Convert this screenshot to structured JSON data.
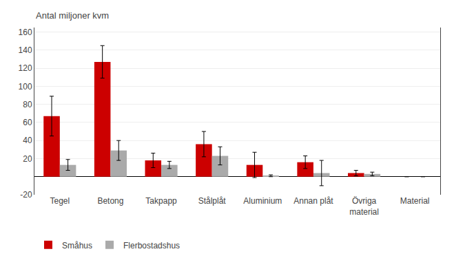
{
  "chart_data": {
    "type": "bar",
    "ylabel": "Antal miljoner kvm",
    "categories": [
      "Tegel",
      "Betong",
      "Takpapp",
      "Stålplåt",
      "Aluminium",
      "Annan plåt",
      "Övriga\nmaterial",
      "Material"
    ],
    "series": [
      {
        "name": "Småhus",
        "color": "#cc0000",
        "values": [
          67,
          127,
          18,
          36,
          13,
          16,
          4,
          0
        ],
        "errors": [
          22,
          18,
          8,
          14,
          14,
          7,
          3,
          0
        ]
      },
      {
        "name": "Flerbostadshus",
        "color": "#aaaaaa",
        "values": [
          13,
          29,
          13,
          23,
          1,
          4,
          3,
          0
        ],
        "errors": [
          6,
          11,
          4,
          10,
          1,
          14,
          2,
          0
        ]
      }
    ],
    "ylim": [
      -20,
      165
    ],
    "yticks": [
      -20,
      20,
      40,
      60,
      80,
      100,
      120,
      140,
      160
    ],
    "grid": true,
    "legend": "lower left"
  }
}
